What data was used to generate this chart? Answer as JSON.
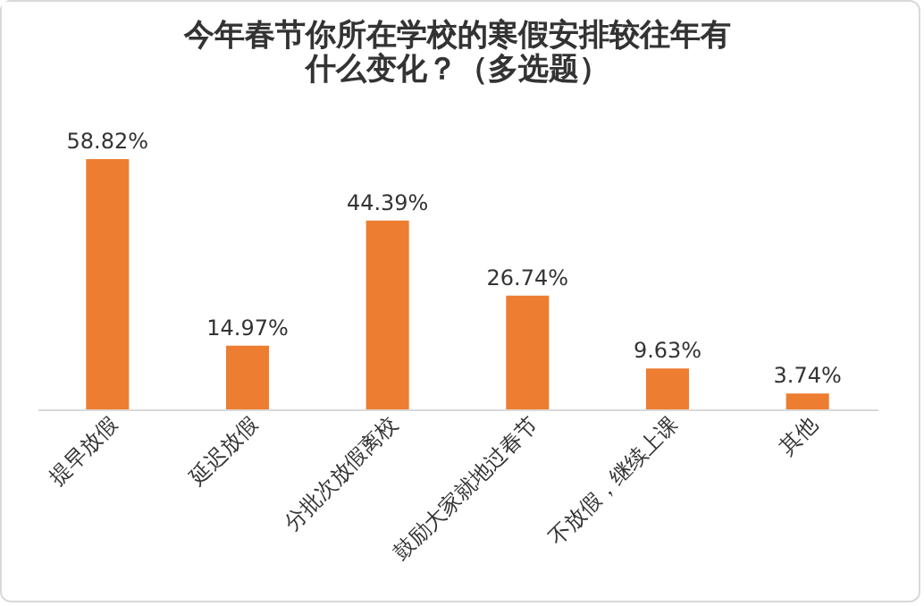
{
  "chart_data": {
    "type": "bar",
    "title": "今年春节你所在学校的寒假安排较往年有什么变化？（多选题）",
    "categories": [
      "提早放假",
      "延迟放假",
      "分批次放假离校",
      "鼓励大家就地过春节",
      "不放假，继续上课",
      "其他"
    ],
    "values": [
      58.82,
      14.97,
      44.39,
      26.74,
      9.63,
      3.74
    ],
    "value_labels": [
      "58.82%",
      "14.97%",
      "44.39%",
      "26.74%",
      "9.63%",
      "3.74%"
    ],
    "color": "#ed7d31"
  }
}
